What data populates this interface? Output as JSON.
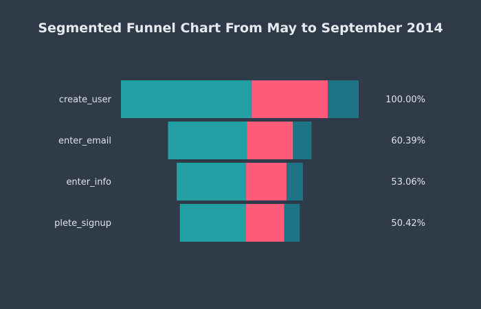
{
  "chart_data": {
    "type": "bar",
    "title": "Segmented Funnel Chart From May to September 2014",
    "categories": [
      "create_user",
      "enter_email",
      "enter_info",
      "complete_signup"
    ],
    "percent_labels": [
      "100.00%",
      "60.39%",
      "53.06%",
      "50.42%"
    ],
    "series": [
      {
        "values": [
          100,
          60.39,
          53.06,
          50.42
        ],
        "segment_shares": [
          0.55,
          0.55,
          0.55,
          0.55
        ]
      },
      {
        "values": [
          100,
          60.39,
          53.06,
          50.42
        ],
        "segment_shares": [
          0.32,
          0.32,
          0.32,
          0.32
        ]
      },
      {
        "values": [
          100,
          60.39,
          53.06,
          50.42
        ],
        "segment_shares": [
          0.13,
          0.13,
          0.13,
          0.13
        ]
      }
    ],
    "xlabel": "",
    "ylabel": "",
    "grid": false,
    "legend": "none"
  },
  "colors": {
    "background": "#2e3a48",
    "plot_background": "#303b4a",
    "segments": [
      "#22a0a3",
      "#fe5a7a",
      "#1e7384"
    ],
    "text": "#dfe3e8"
  }
}
